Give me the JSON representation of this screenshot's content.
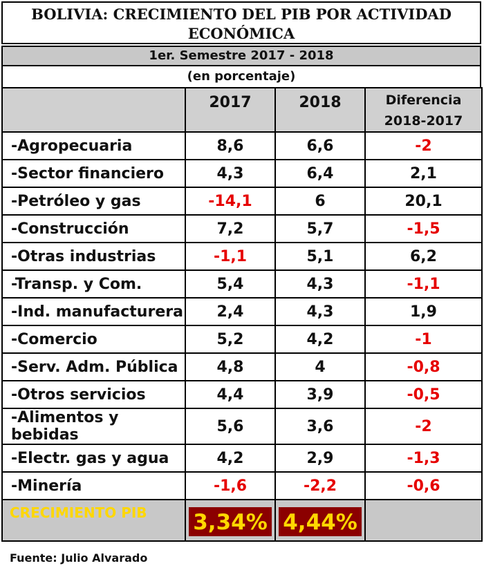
{
  "header": {
    "title": "BOLIVIA: CRECIMIENTO DEL PIB POR ACTIVIDAD ECONÓMICA",
    "subtitle": "1er. Semestre 2017 - 2018",
    "units": "(en porcentaje)"
  },
  "columns": {
    "y2017": "2017",
    "y2018": "2018",
    "diff": "Diferencia 2018-2017"
  },
  "chart_data": {
    "type": "table",
    "title": "BOLIVIA: CRECIMIENTO DEL PIB POR ACTIVIDAD ECONÓMICA",
    "subtitle": "1er. Semestre 2017 - 2018",
    "units": "(en porcentaje)",
    "columns": [
      "2017",
      "2018",
      "Diferencia 2018-2017"
    ],
    "rows": [
      {
        "label": "-Agropecuaria",
        "y2017": "8,6",
        "y2018": "6,6",
        "diff": "-2"
      },
      {
        "label": "-Sector financiero",
        "y2017": "4,3",
        "y2018": "6,4",
        "diff": "2,1"
      },
      {
        "label": "-Petróleo y gas",
        "y2017": "-14,1",
        "y2018": "6",
        "diff": "20,1"
      },
      {
        "label": "-Construcción",
        "y2017": "7,2",
        "y2018": "5,7",
        "diff": "-1,5"
      },
      {
        "label": "-Otras industrias",
        "y2017": "-1,1",
        "y2018": "5,1",
        "diff": "6,2"
      },
      {
        "label": "-Transp. y Com.",
        "y2017": "5,4",
        "y2018": "4,3",
        "diff": "-1,1"
      },
      {
        "label": "-Ind. manufacturera",
        "y2017": "2,4",
        "y2018": "4,3",
        "diff": "1,9"
      },
      {
        "label": "-Comercio",
        "y2017": "5,2",
        "y2018": "4,2",
        "diff": "-1"
      },
      {
        "label": "-Serv.  Adm. Pública",
        "y2017": "4,8",
        "y2018": "4",
        "diff": "-0,8"
      },
      {
        "label": "-Otros servicios",
        "y2017": "4,4",
        "y2018": "3,9",
        "diff": "-0,5"
      },
      {
        "label": "-Alimentos y bebidas",
        "y2017": "5,6",
        "y2018": "3,6",
        "diff": "-2"
      },
      {
        "label": "-Electr.  gas y agua",
        "y2017": "4,2",
        "y2018": "2,9",
        "diff": "-1,3"
      },
      {
        "label": "-Minería",
        "y2017": "-1,6",
        "y2018": "-2,2",
        "diff": "-0,6"
      }
    ],
    "total": {
      "label": "CRECIMIENTO  PIB",
      "y2017": "3,34%",
      "y2018": "4,44%"
    }
  },
  "colors": {
    "negative": "#e60000",
    "header_gray": "#d0d0d0",
    "total_box": "#8b0000",
    "total_text": "#ffd700"
  },
  "footer": {
    "source": "Fuente: Julio Alvarado"
  }
}
